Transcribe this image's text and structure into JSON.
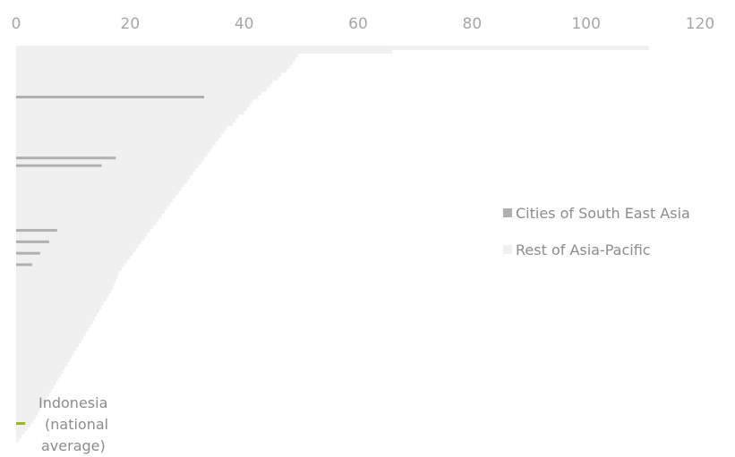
{
  "chart_data": {
    "type": "bar",
    "orientation": "horizontal",
    "title": "",
    "xlabel": "",
    "ylabel": "",
    "xlim": [
      0,
      120
    ],
    "x_ticks": [
      0,
      20,
      40,
      60,
      80,
      100,
      120
    ],
    "grid": false,
    "legend_position": "right",
    "colors": {
      "Cities of South East Asia": "#b0b0b0",
      "Rest of Asia-Pacific": "#f0f0f0",
      "Indonesia (national average)": "#9ab52e"
    },
    "legend": [
      "Cities of South East Asia",
      "Rest of Asia-Pacific"
    ],
    "annotation": {
      "lines": [
        "Indonesia",
        "(national",
        "average)"
      ]
    },
    "values": [
      111,
      66,
      49.5,
      49,
      48.5,
      48,
      47.5,
      46.5,
      46,
      45,
      44.5,
      44,
      43,
      42.5,
      41.5,
      41,
      40.5,
      40,
      39,
      38.5,
      38,
      37,
      36.5,
      36,
      35.5,
      35,
      34.5,
      34,
      33.5,
      33,
      32.5,
      32,
      31.5,
      31,
      30.5,
      30,
      29.5,
      29,
      28.5,
      28,
      27.5,
      27,
      26.5,
      26,
      25.5,
      25,
      24.5,
      24,
      23.5,
      23,
      22.5,
      22,
      21.5,
      21,
      20.5,
      20,
      19.5,
      19,
      18.5,
      18,
      17.8,
      17.5,
      17.2,
      17,
      16.6,
      16.2,
      15.8,
      15.4,
      15,
      14.6,
      14.2,
      13.8,
      13.4,
      13,
      12.6,
      12.2,
      11.8,
      11.4,
      11,
      10.6,
      10.2,
      9.8,
      9.4,
      9,
      8.6,
      8.2,
      7.8,
      7.4,
      7,
      6.6,
      6.2,
      5.8,
      5.4,
      5,
      4.6,
      4.2,
      3.8,
      3.4,
      3,
      2.5,
      2,
      1.5,
      1,
      0.5
    ],
    "highlight_sea": [
      13,
      29,
      31,
      48,
      51,
      54,
      57
    ],
    "sea_values": [
      33,
      17.5,
      15,
      7.2,
      5.8,
      4.2,
      2.8
    ],
    "indonesia_value": 1.6
  }
}
